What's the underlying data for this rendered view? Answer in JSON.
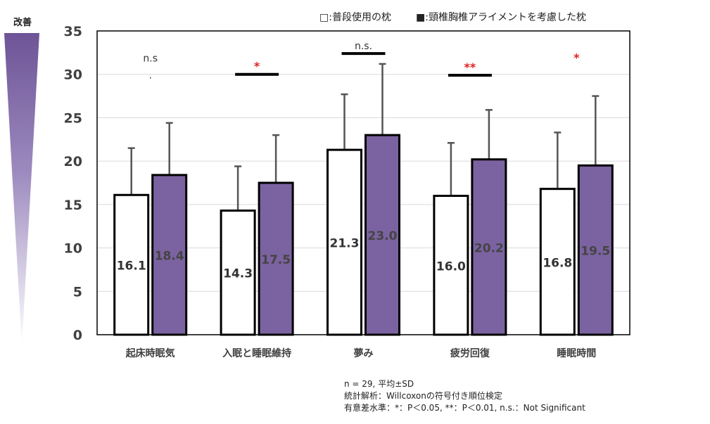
{
  "improve_label": "改善",
  "colors": {
    "purple": "#7b62a0",
    "white": "#ffffff",
    "sig_red": "#e02020",
    "bar_outline": "#000000",
    "error_bar": "#555555"
  },
  "chart_data": {
    "type": "bar",
    "categories": [
      "起床時眠気",
      "入眠と睡眠維持",
      "夢み",
      "疲労回復",
      "睡眠時間"
    ],
    "series": [
      {
        "name": "□:普段使用の枕",
        "values": [
          16.1,
          14.3,
          21.3,
          16.0,
          16.8
        ],
        "sd": [
          5.4,
          5.1,
          6.4,
          6.1,
          6.5
        ],
        "labels": [
          "16.1",
          "14.3",
          "21.3",
          "16.0",
          "16.8"
        ]
      },
      {
        "name": "■:頸椎胸椎アライメントを考慮した枕",
        "values": [
          18.4,
          17.5,
          23.0,
          20.2,
          19.5
        ],
        "sd": [
          6.0,
          5.5,
          8.2,
          5.7,
          8.0
        ],
        "labels": [
          "18.4",
          "17.5",
          "23.0",
          "20.2",
          "19.5"
        ]
      }
    ],
    "yticks": [
      "0",
      "5",
      "10",
      "15",
      "20",
      "25",
      "30",
      "35"
    ],
    "ylim": [
      0,
      35
    ],
    "grid": true,
    "legend": "top-right",
    "significance": [
      {
        "label": "n.s",
        "suffix": ".",
        "level": 31.0,
        "bar": false,
        "red": false
      },
      {
        "label": "*",
        "suffix": "",
        "level": 30.0,
        "bar": true,
        "red": true
      },
      {
        "label": "n.s.",
        "suffix": "",
        "level": 32.4,
        "bar": true,
        "red": false
      },
      {
        "label": "**",
        "suffix": "",
        "level": 29.9,
        "bar": true,
        "red": true
      },
      {
        "label": "*",
        "suffix": "",
        "level": 31.0,
        "bar": false,
        "red": true
      }
    ]
  },
  "notes": [
    "n = 29, 平均±SD",
    "統計解析：Willcoxonの符号付き順位検定",
    "有意差水準：*：P＜0.05, **：P＜0.01, n.s.：Not Significant"
  ]
}
